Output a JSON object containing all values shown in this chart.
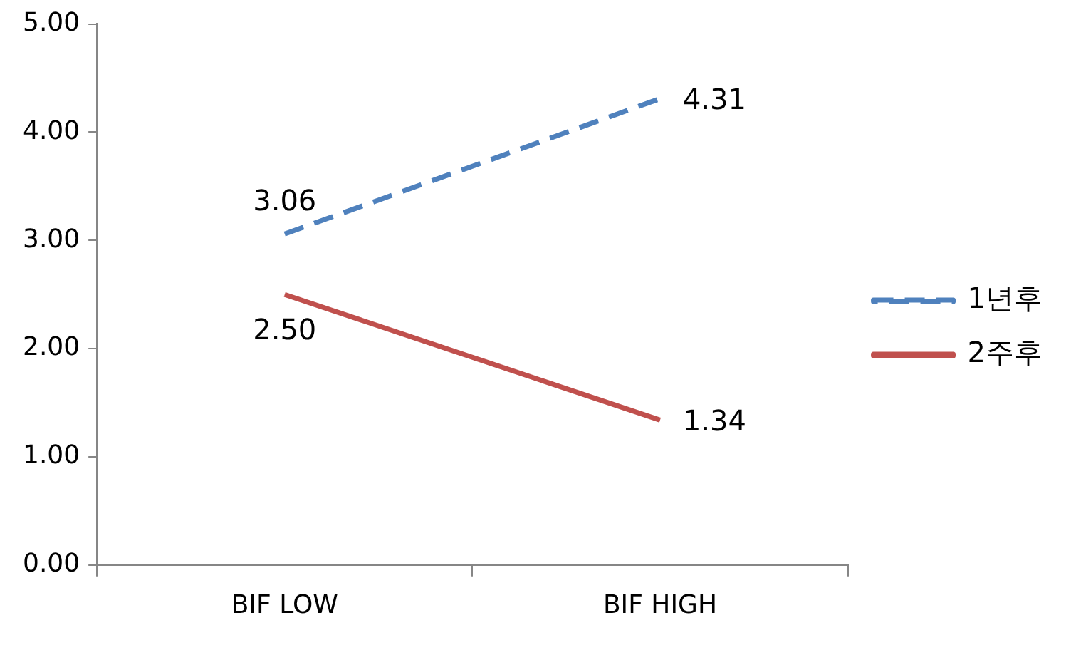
{
  "chart_data": {
    "type": "line",
    "categories": [
      "BIF LOW",
      "BIF HIGH"
    ],
    "series": [
      {
        "name": "1년후",
        "color": "#4f81bd",
        "line_style": "dashed",
        "values": [
          3.06,
          4.31
        ],
        "value_labels": [
          "3.06",
          "4.31"
        ]
      },
      {
        "name": "2주후",
        "color": "#c0504d",
        "line_style": "solid",
        "values": [
          2.5,
          1.34
        ],
        "value_labels": [
          "2.50",
          "1.34"
        ]
      }
    ],
    "ylim": [
      0,
      5
    ],
    "yticks": [
      {
        "value": 0,
        "label": "0.00"
      },
      {
        "value": 1,
        "label": "1.00"
      },
      {
        "value": 2,
        "label": "2.00"
      },
      {
        "value": 3,
        "label": "3.00"
      },
      {
        "value": 4,
        "label": "4.00"
      },
      {
        "value": 5,
        "label": "5.00"
      }
    ],
    "grid": false,
    "legend": "right",
    "marker": "none"
  }
}
